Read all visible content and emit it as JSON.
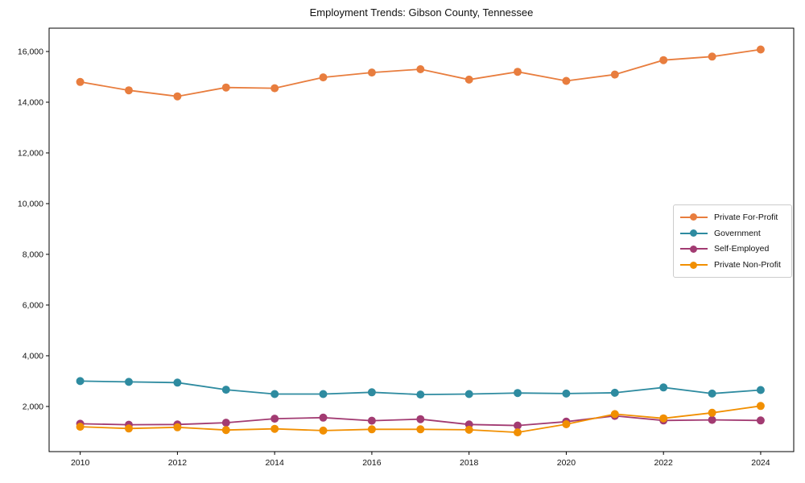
{
  "title": "Employment Trends: Gibson County, Tennessee",
  "chart_data": {
    "type": "line",
    "title": "Employment Trends: Gibson County, Tennessee",
    "xlabel": "",
    "ylabel": "",
    "grid": false,
    "legend_position": "center-right",
    "marker": "circle",
    "x": [
      2010,
      2011,
      2012,
      2013,
      2014,
      2015,
      2016,
      2017,
      2018,
      2019,
      2020,
      2021,
      2022,
      2023,
      2024
    ],
    "series": [
      {
        "name": "Private For-Profit",
        "color": "#E87D3E",
        "values": [
          14800,
          14470,
          14230,
          14580,
          14550,
          14980,
          15170,
          15300,
          14890,
          15200,
          14840,
          15090,
          15660,
          15800,
          16080
        ]
      },
      {
        "name": "Government",
        "color": "#2E8BA0",
        "values": [
          3000,
          2970,
          2940,
          2660,
          2490,
          2490,
          2560,
          2470,
          2490,
          2530,
          2510,
          2540,
          2750,
          2510,
          2650
        ]
      },
      {
        "name": "Self-Employed",
        "color": "#A23B72",
        "values": [
          1320,
          1280,
          1290,
          1360,
          1520,
          1560,
          1440,
          1500,
          1290,
          1250,
          1400,
          1630,
          1450,
          1470,
          1450
        ]
      },
      {
        "name": "Private Non-Profit",
        "color": "#F18F01",
        "values": [
          1200,
          1130,
          1180,
          1070,
          1120,
          1050,
          1100,
          1100,
          1080,
          980,
          1300,
          1700,
          1530,
          1750,
          2020
        ]
      }
    ],
    "xlim": [
      2009.36,
      2024.68
    ],
    "ylim": [
      220,
      16920
    ],
    "xticks": {
      "values": [
        2010,
        2012,
        2014,
        2016,
        2018,
        2020,
        2022,
        2024
      ],
      "labels": [
        "2010",
        "2012",
        "2014",
        "2016",
        "2018",
        "2020",
        "2022",
        "2024"
      ]
    },
    "yticks": {
      "values": [
        2000,
        4000,
        6000,
        8000,
        10000,
        12000,
        14000,
        16000
      ],
      "labels": [
        "2,000",
        "4,000",
        "6,000",
        "8,000",
        "10,000",
        "12,000",
        "14,000",
        "16,000"
      ]
    }
  }
}
